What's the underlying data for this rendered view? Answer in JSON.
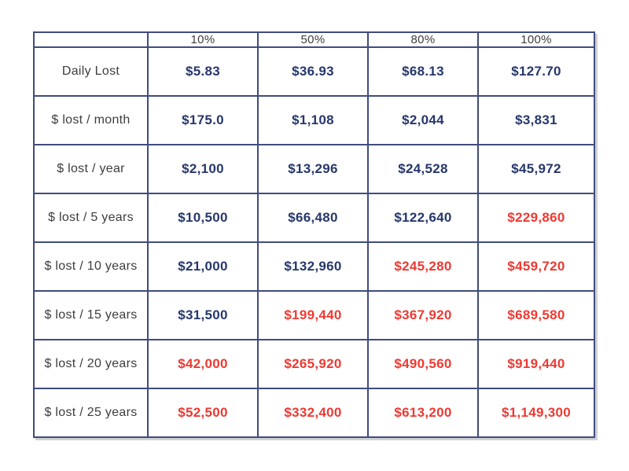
{
  "colors": {
    "navy": "#26376b",
    "red": "#ee3932",
    "border": "#3f4c7d",
    "label_text": "#3d3d3d"
  },
  "chart_data": {
    "type": "table",
    "columns": [
      "",
      "10%",
      "50%",
      "80%",
      "100%"
    ],
    "rows": [
      {
        "label": "Daily Lost",
        "values": [
          "$5.83",
          "$36.93",
          "$68.13",
          "$127.70"
        ],
        "value_colors": [
          "navy",
          "navy",
          "navy",
          "navy"
        ]
      },
      {
        "label": "$ lost / month",
        "values": [
          "$175.0",
          "$1,108",
          "$2,044",
          "$3,831"
        ],
        "value_colors": [
          "navy",
          "navy",
          "navy",
          "navy"
        ]
      },
      {
        "label": "$ lost / year",
        "values": [
          "$2,100",
          "$13,296",
          "$24,528",
          "$45,972"
        ],
        "value_colors": [
          "navy",
          "navy",
          "navy",
          "navy"
        ]
      },
      {
        "label": "$ lost / 5 years",
        "values": [
          "$10,500",
          "$66,480",
          "$122,640",
          "$229,860"
        ],
        "value_colors": [
          "navy",
          "navy",
          "navy",
          "red"
        ]
      },
      {
        "label": "$ lost / 10 years",
        "values": [
          "$21,000",
          "$132,960",
          "$245,280",
          "$459,720"
        ],
        "value_colors": [
          "navy",
          "navy",
          "red",
          "red"
        ]
      },
      {
        "label": "$ lost / 15 years",
        "values": [
          "$31,500",
          "$199,440",
          "$367,920",
          "$689,580"
        ],
        "value_colors": [
          "navy",
          "red",
          "red",
          "red"
        ]
      },
      {
        "label": "$ lost / 20 years",
        "values": [
          "$42,000",
          "$265,920",
          "$490,560",
          "$919,440"
        ],
        "value_colors": [
          "red",
          "red",
          "red",
          "red"
        ]
      },
      {
        "label": "$ lost / 25 years",
        "values": [
          "$52,500",
          "$332,400",
          "$613,200",
          "$1,149,300"
        ],
        "value_colors": [
          "red",
          "red",
          "red",
          "red"
        ]
      }
    ]
  }
}
